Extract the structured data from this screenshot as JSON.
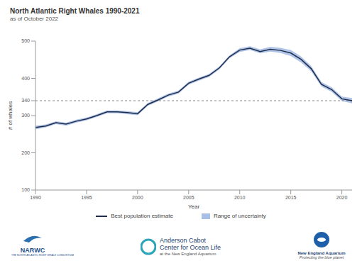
{
  "chart_data": {
    "type": "line",
    "title": "North Atlantic Right Whales 1990-2021",
    "subtitle": "as of October 2022",
    "x_label": "Year",
    "y_label": "# of whales",
    "x": [
      1990,
      1991,
      1992,
      1993,
      1994,
      1995,
      1996,
      1997,
      1998,
      1999,
      2000,
      2001,
      2002,
      2003,
      2004,
      2005,
      2006,
      2007,
      2008,
      2009,
      2010,
      2011,
      2012,
      2013,
      2014,
      2015,
      2016,
      2017,
      2018,
      2019,
      2020,
      2021
    ],
    "series": [
      {
        "name": "Best population estimate",
        "color": "#1f2d4d",
        "type": "line",
        "values": [
          268,
          272,
          281,
          277,
          285,
          291,
          300,
          310,
          310,
          308,
          305,
          330,
          342,
          355,
          363,
          387,
          398,
          408,
          428,
          458,
          476,
          481,
          472,
          478,
          475,
          468,
          451,
          426,
          384,
          370,
          345,
          340
        ]
      },
      {
        "name": "Range of uncertainty",
        "color": "#a9bfe6",
        "type": "area",
        "lower": [
          263,
          268,
          277,
          273,
          281,
          287,
          296,
          306,
          306,
          304,
          301,
          326,
          338,
          351,
          359,
          383,
          394,
          404,
          424,
          454,
          471,
          476,
          467,
          472,
          468,
          460,
          443,
          419,
          378,
          364,
          339,
          333
        ],
        "upper": [
          273,
          276,
          285,
          281,
          289,
          295,
          304,
          314,
          314,
          312,
          309,
          334,
          346,
          359,
          367,
          391,
          402,
          412,
          432,
          462,
          481,
          486,
          478,
          485,
          482,
          476,
          459,
          433,
          390,
          376,
          351,
          347
        ]
      }
    ],
    "xlim": [
      1990,
      2021
    ],
    "xticks": [
      1990,
      1995,
      2000,
      2005,
      2010,
      2015,
      2020
    ],
    "ylim": [
      100,
      500
    ],
    "yticks": [
      100,
      200,
      300,
      340,
      400,
      500
    ],
    "reference_line": 340,
    "grid": false,
    "legend": "bottom",
    "annotations": [
      "NARWC",
      "THE NORTH ATLANTIC RIGHT WHALE CONSORTIUM",
      "Anderson Cabot",
      "Center for Ocean Life",
      "at the New England Aquarium",
      "New England Aquarium",
      "Protecting the blue planet"
    ]
  }
}
